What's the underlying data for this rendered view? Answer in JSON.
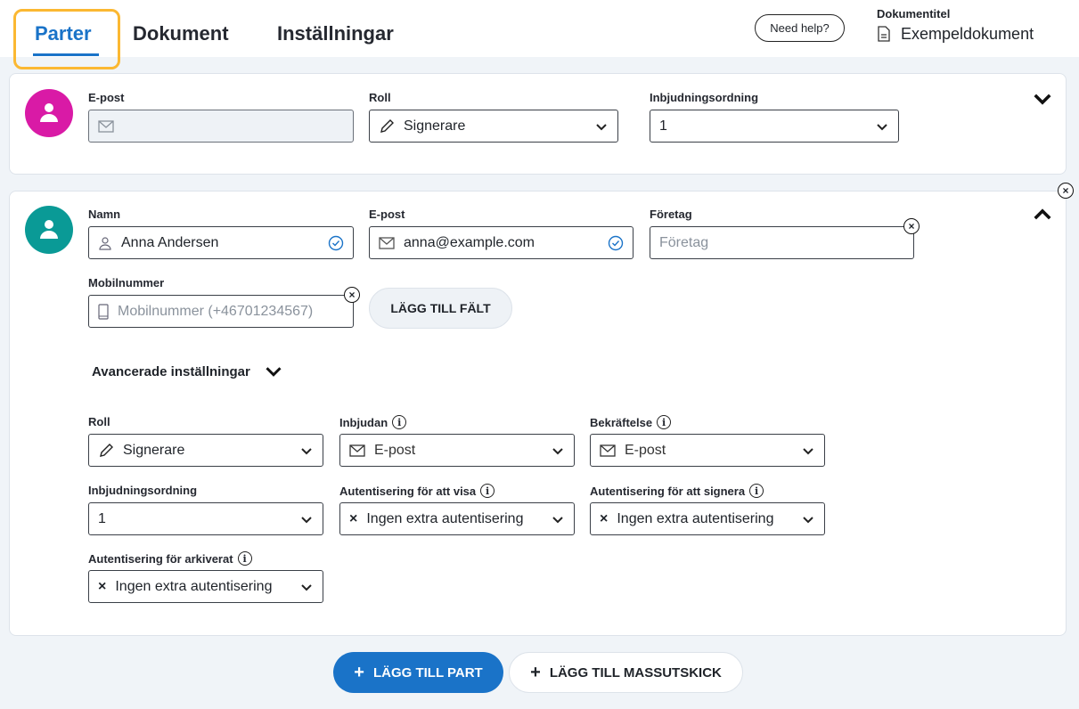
{
  "tabs": [
    {
      "label": "Parter",
      "active": true
    },
    {
      "label": "Dokument"
    },
    {
      "label": "Inställningar"
    }
  ],
  "help_label": "Need help?",
  "document": {
    "label": "Dokumentitel",
    "name": "Exempeldokument"
  },
  "colors": {
    "accent": "#1a73c8",
    "focus": "#fbb832",
    "avatar1": "#d91aa6",
    "avatar2": "#0a9a96"
  },
  "party1": {
    "email_label": "E-post",
    "email_value": "",
    "role_label": "Roll",
    "role_value": "Signerare",
    "order_label": "Inbjudningsordning",
    "order_value": "1"
  },
  "party2": {
    "name_label": "Namn",
    "name_value": "Anna Andersen",
    "email_label": "E-post",
    "email_value": "anna@example.com",
    "company_label": "Företag",
    "company_placeholder": "Företag",
    "mobile_label": "Mobilnummer",
    "mobile_placeholder": "Mobilnummer (+46701234567)",
    "add_field_label": "LÄGG TILL FÄLT",
    "advanced_label": "Avancerade inställningar",
    "advanced": {
      "role_label": "Roll",
      "role_value": "Signerare",
      "invite_label": "Inbjudan",
      "invite_value": "E-post",
      "confirm_label": "Bekräftelse",
      "confirm_value": "E-post",
      "order_label": "Inbjudningsordning",
      "order_value": "1",
      "auth_view_label": "Autentisering för att visa",
      "auth_view_value": "Ingen extra autentisering",
      "auth_sign_label": "Autentisering för att signera",
      "auth_sign_value": "Ingen extra autentisering",
      "auth_archive_label": "Autentisering för arkiverat",
      "auth_archive_value": "Ingen extra autentisering"
    }
  },
  "footer": {
    "add_party": "LÄGG TILL PART",
    "add_bulk": "LÄGG TILL MASSUTSKICK"
  }
}
